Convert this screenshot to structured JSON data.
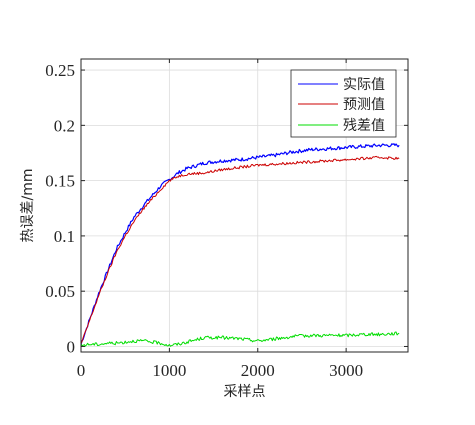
{
  "chart_data": {
    "type": "line",
    "title": "",
    "xlabel": "采样点",
    "ylabel": "热误差/mm",
    "xlim": [
      0,
      3700
    ],
    "ylim": [
      -0.005,
      0.26
    ],
    "xticks": [
      0,
      1000,
      2000,
      3000
    ],
    "yticks": [
      0,
      0.05,
      0.1,
      0.15,
      0.2,
      0.25
    ],
    "xtick_labels": [
      "0",
      "1000",
      "2000",
      "3000"
    ],
    "ytick_labels": [
      "0",
      "0.05",
      "0.1",
      "0.15",
      "0.2",
      "0.25"
    ],
    "grid": true,
    "legend_position": "top-right",
    "series": [
      {
        "name": "实际值",
        "color": "#0000ff",
        "x": [
          0,
          100,
          200,
          300,
          400,
          500,
          600,
          700,
          800,
          900,
          1000,
          1100,
          1200,
          1400,
          1600,
          1800,
          2000,
          2200,
          2400,
          2600,
          2800,
          3000,
          3200,
          3400,
          3600
        ],
        "y": [
          0.002,
          0.025,
          0.048,
          0.068,
          0.088,
          0.103,
          0.117,
          0.127,
          0.136,
          0.145,
          0.151,
          0.157,
          0.161,
          0.166,
          0.168,
          0.169,
          0.171,
          0.173,
          0.176,
          0.178,
          0.179,
          0.18,
          0.181,
          0.182,
          0.182
        ]
      },
      {
        "name": "预测值",
        "color": "#cc0000",
        "x": [
          0,
          100,
          200,
          300,
          400,
          500,
          600,
          700,
          800,
          900,
          1000,
          1100,
          1200,
          1400,
          1600,
          1800,
          2000,
          2200,
          2400,
          2600,
          2800,
          3000,
          3200,
          3400,
          3600
        ],
        "y": [
          0.002,
          0.024,
          0.046,
          0.066,
          0.085,
          0.1,
          0.113,
          0.124,
          0.133,
          0.142,
          0.15,
          0.154,
          0.156,
          0.157,
          0.16,
          0.162,
          0.164,
          0.165,
          0.166,
          0.167,
          0.168,
          0.169,
          0.17,
          0.171,
          0.17
        ]
      },
      {
        "name": "残差值",
        "color": "#00dd00",
        "x": [
          0,
          100,
          200,
          300,
          400,
          500,
          600,
          700,
          800,
          900,
          1000,
          1100,
          1200,
          1400,
          1600,
          1800,
          2000,
          2200,
          2400,
          2600,
          2800,
          3000,
          3200,
          3400,
          3600
        ],
        "y": [
          0.001,
          0.002,
          0.002,
          0.003,
          0.003,
          0.004,
          0.005,
          0.005,
          0.004,
          0.003,
          0.001,
          0.002,
          0.004,
          0.008,
          0.008,
          0.007,
          0.005,
          0.007,
          0.009,
          0.01,
          0.01,
          0.01,
          0.011,
          0.011,
          0.012
        ]
      }
    ]
  }
}
